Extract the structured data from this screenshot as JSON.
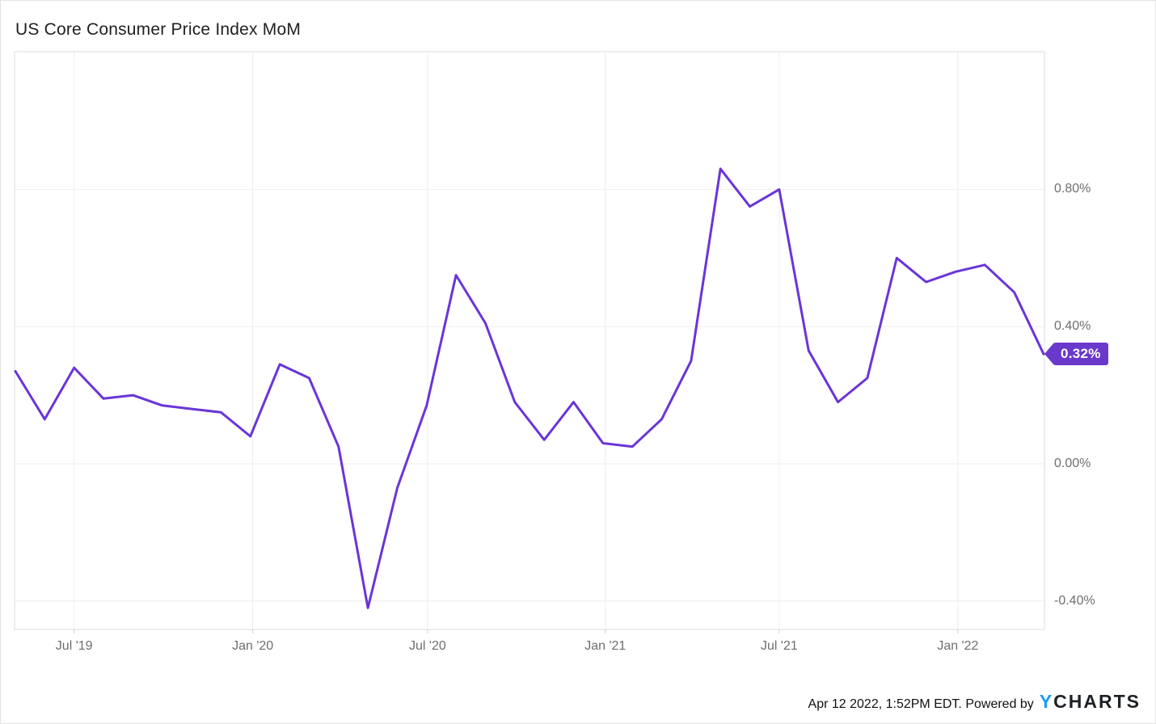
{
  "title": "US Core Consumer Price Index MoM",
  "badge": {
    "label": "0.32%"
  },
  "footer": {
    "timestamp": "Apr 12 2022, 1:52PM EDT.",
    "powered_by": "Powered by",
    "logo_y": "Y",
    "logo_rest": "CHARTS"
  },
  "colors": {
    "line": "#6A35D8",
    "badge": "#6B38CC",
    "grid": "#eeeeee",
    "plot_border": "#dddddd",
    "tick": "#cfcfcf",
    "axis_text": "#6e6e6e",
    "logo_blue": "#1B9CF4"
  },
  "chart_data": {
    "type": "line",
    "title": "US Core Consumer Price Index MoM",
    "xlabel": "",
    "ylabel": "",
    "grid": true,
    "legend_position": "none",
    "y_axis_side": "right",
    "ylim": [
      -0.483,
      1.201
    ],
    "y_ticks": [
      {
        "label": "0.80%",
        "value": 0.8
      },
      {
        "label": "0.40%",
        "value": 0.4
      },
      {
        "label": "0.00%",
        "value": 0.0
      },
      {
        "label": "-0.40%",
        "value": -0.4
      }
    ],
    "x_ticks": [
      {
        "label": "Jul '19",
        "index": 2.0
      },
      {
        "label": "Jan '20",
        "index": 8.08
      },
      {
        "label": "Jul '20",
        "index": 14.03
      },
      {
        "label": "Jan '21",
        "index": 20.08
      },
      {
        "label": "Jul '21",
        "index": 26.0
      },
      {
        "label": "Jan '22",
        "index": 32.08
      }
    ],
    "x": [
      "Apr 2019",
      "May 2019",
      "Jun 2019",
      "Jul 2019",
      "Aug 2019",
      "Sep 2019",
      "Oct 2019",
      "Nov 2019",
      "Dec 2019",
      "Jan 2020",
      "Feb 2020",
      "Mar 2020",
      "Apr 2020",
      "May 2020",
      "Jun 2020",
      "Jul 2020",
      "Aug 2020",
      "Sep 2020",
      "Oct 2020",
      "Nov 2020",
      "Dec 2020",
      "Jan 2021",
      "Feb 2021",
      "Mar 2021",
      "Apr 2021",
      "May 2021",
      "Jun 2021",
      "Jul 2021",
      "Aug 2021",
      "Sep 2021",
      "Oct 2021",
      "Nov 2021",
      "Dec 2021",
      "Jan 2022",
      "Feb 2022",
      "Mar 2022"
    ],
    "values": [
      0.27,
      0.13,
      0.28,
      0.19,
      0.2,
      0.17,
      0.16,
      0.15,
      0.08,
      0.29,
      0.25,
      0.05,
      -0.42,
      -0.07,
      0.17,
      0.55,
      0.41,
      0.18,
      0.07,
      0.18,
      0.06,
      0.05,
      0.13,
      0.3,
      0.86,
      0.75,
      0.8,
      0.33,
      0.18,
      0.25,
      0.6,
      0.53,
      0.56,
      0.58,
      0.5,
      0.32
    ],
    "last_value_label": "0.32%"
  }
}
